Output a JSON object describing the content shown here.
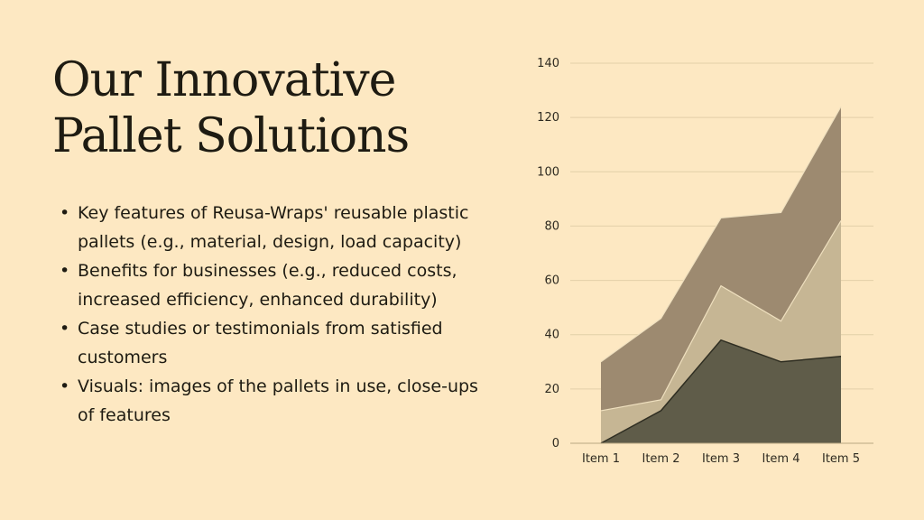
{
  "slide": {
    "title_lines": [
      "Our Innovative",
      "Pallet Solutions"
    ],
    "bullets": [
      "Key features of Reusa-Wraps' reusable plastic pallets (e.g., material, design, load capacity)",
      "Benefits for businesses (e.g., reduced costs, increased efficiency, enhanced durability)",
      "Case studies or testimonials from satisfied customers",
      "Visuals: images of the pallets in use, close-ups of features"
    ]
  },
  "chart_data": {
    "type": "area",
    "stacked": false,
    "categories": [
      "Item 1",
      "Item 2",
      "Item 3",
      "Item 4",
      "Item 5"
    ],
    "series": [
      {
        "values": [
          30,
          46,
          83,
          85,
          124
        ],
        "color": "#9d8a70"
      },
      {
        "values": [
          12,
          16,
          58,
          45,
          82
        ],
        "color": "#c6b694"
      },
      {
        "values": [
          0,
          12,
          38,
          30,
          32
        ],
        "color": "#5f5c49"
      }
    ],
    "title": "",
    "xlabel": "",
    "ylabel": "",
    "ylim": [
      0,
      140
    ],
    "yticks": [
      0,
      20,
      40,
      60,
      80,
      100,
      120,
      140
    ],
    "grid": true,
    "legend": "none"
  }
}
